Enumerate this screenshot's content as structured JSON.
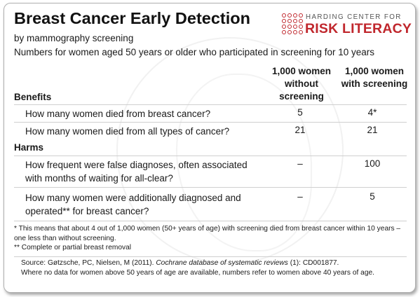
{
  "header": {
    "title": "Breast Cancer Early Detection",
    "subtitle": "by mammography screening",
    "population": "Numbers for women aged 50 years or older who participated in screening for 10 years"
  },
  "logo": {
    "top_text": "HARDING CENTER FOR",
    "bottom_text": "RISK LITERACY",
    "accent_color": "#c0272d"
  },
  "table": {
    "col1_header": "1,000 women without screening",
    "col2_header": "1,000 women with screening",
    "benefits_label": "Benefits",
    "harms_label": "Harms",
    "benefits": [
      {
        "question": "How many women died from breast cancer?",
        "without": "5",
        "with": "4*"
      },
      {
        "question": "How many women died from all types of cancer?",
        "without": "21",
        "with": "21"
      }
    ],
    "harms": [
      {
        "question": "How frequent were false diagnoses, often associated with months of waiting for all-clear?",
        "without": "–",
        "with": "100"
      },
      {
        "question": "How many women were additionally diagnosed and operated** for breast cancer?",
        "without": "–",
        "with": "5"
      }
    ]
  },
  "footnotes": {
    "note1": "* This means that about 4 out of 1,000 women (50+ years of age) with screening died from breast cancer within 10 years – one less than without screening.",
    "note2": "** Complete or partial breast removal"
  },
  "source": {
    "prefix": "Source: Gøtzsche, PC, Nielsen, M (2011). ",
    "journal": "Cochrane database of systematic reviews",
    "suffix": " (1): CD001877.",
    "note": "Where no data for women above 50 years of age are available, numbers refer to women above 40 years of age."
  }
}
